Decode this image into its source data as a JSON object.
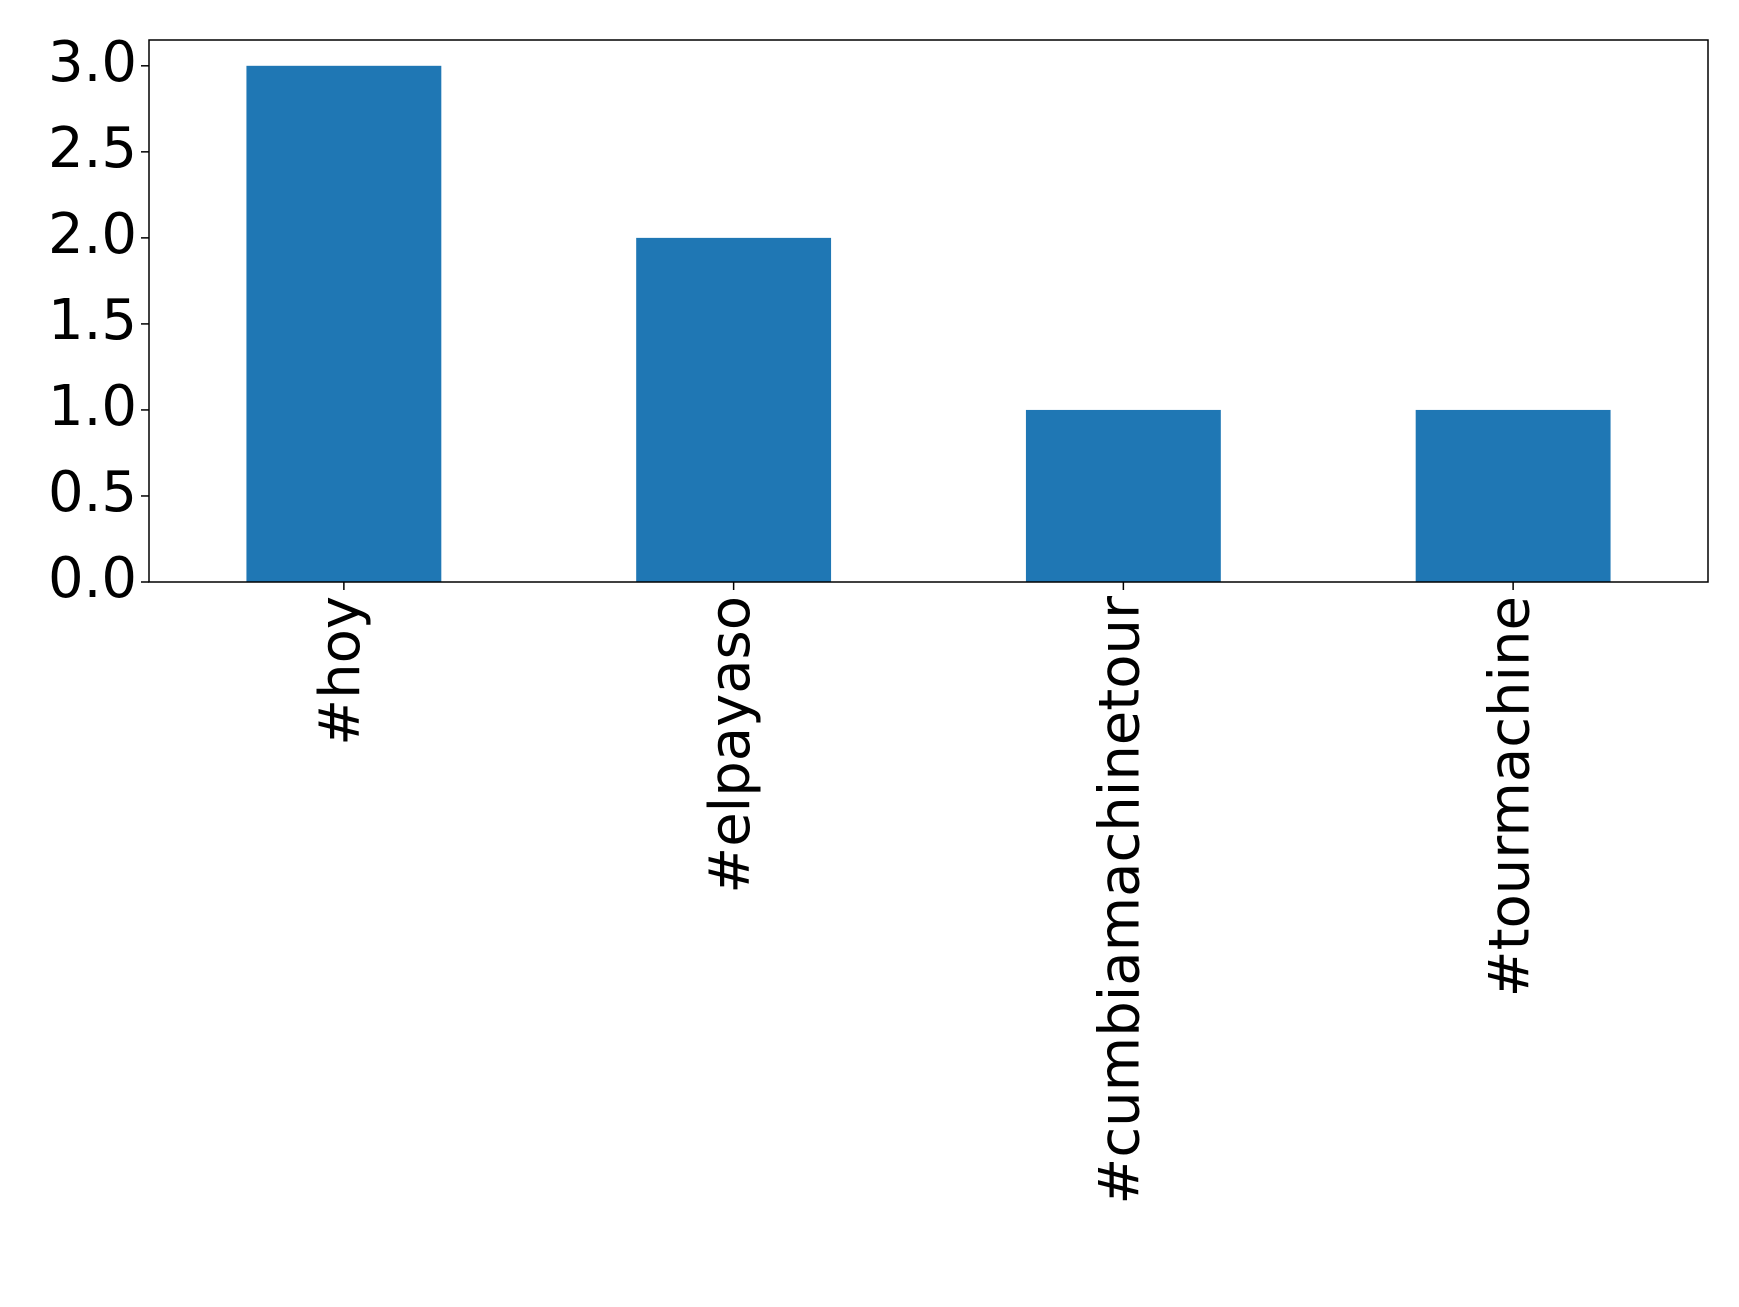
{
  "chart_data": {
    "type": "bar",
    "categories": [
      "#hoy",
      "#elpayaso",
      "#cumbiamachinetour",
      "#tourmachine"
    ],
    "values": [
      3,
      2,
      1,
      1
    ],
    "color": "#1f77b4",
    "ylim": [
      0,
      3.15
    ],
    "yticks": [
      {
        "value": 0,
        "label": "0.0"
      },
      {
        "value": 0.5,
        "label": "0.5"
      },
      {
        "value": 1,
        "label": "1.0"
      },
      {
        "value": 1.5,
        "label": "1.5"
      },
      {
        "value": 2,
        "label": "2.0"
      },
      {
        "value": 2.5,
        "label": "2.5"
      },
      {
        "value": 3,
        "label": "3.0"
      }
    ],
    "grid": false
  }
}
